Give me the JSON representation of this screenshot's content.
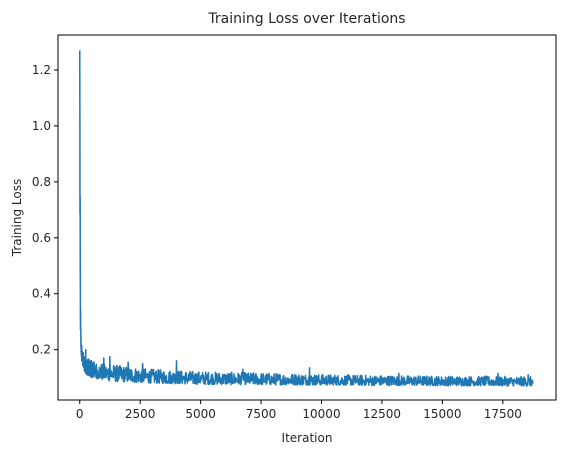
{
  "chart_data": {
    "type": "line",
    "title": "Training Loss over Iterations",
    "xlabel": "Iteration",
    "ylabel": "Training Loss",
    "xlim": [
      -900,
      19700
    ],
    "ylim": [
      0.02,
      1.325
    ],
    "x_ticks": [
      0,
      2500,
      5000,
      7500,
      10000,
      12500,
      15000,
      17500
    ],
    "x_tick_labels": [
      "0",
      "2500",
      "5000",
      "7500",
      "10000",
      "12500",
      "15000",
      "17500"
    ],
    "y_ticks": [
      0.2,
      0.4,
      0.6,
      0.8,
      1.0,
      1.2
    ],
    "y_tick_labels": [
      "0.2",
      "0.4",
      "0.6",
      "0.8",
      "1.0",
      "1.2"
    ],
    "grid": false,
    "legend": "none",
    "series": [
      {
        "color": "#1f77b4",
        "x": [
          0,
          10,
          20,
          35,
          50,
          75,
          100,
          150,
          200,
          300,
          400,
          500,
          750,
          1000,
          1250,
          1500,
          2000,
          2500,
          3000,
          3500,
          4000,
          4500,
          5000,
          6000,
          7000,
          8000,
          9000,
          10000,
          11000,
          12000,
          13000,
          14000,
          15000,
          16000,
          17000,
          18000,
          18750
        ],
        "y_upper": [
          1.27,
          1.05,
          0.62,
          0.32,
          0.27,
          0.23,
          0.2,
          0.19,
          0.18,
          0.17,
          0.165,
          0.16,
          0.155,
          0.15,
          0.15,
          0.145,
          0.14,
          0.135,
          0.13,
          0.128,
          0.126,
          0.124,
          0.122,
          0.12,
          0.118,
          0.116,
          0.114,
          0.112,
          0.11,
          0.109,
          0.108,
          0.107,
          0.106,
          0.105,
          0.105,
          0.104,
          0.104
        ],
        "y_lower": [
          1.27,
          0.5,
          0.3,
          0.22,
          0.19,
          0.16,
          0.15,
          0.13,
          0.12,
          0.11,
          0.105,
          0.1,
          0.095,
          0.09,
          0.088,
          0.086,
          0.084,
          0.082,
          0.08,
          0.079,
          0.078,
          0.077,
          0.076,
          0.075,
          0.075,
          0.074,
          0.074,
          0.073,
          0.073,
          0.072,
          0.072,
          0.072,
          0.071,
          0.071,
          0.071,
          0.07,
          0.07
        ],
        "spikes": [
          [
            250,
            0.2
          ],
          [
            1000,
            0.17
          ],
          [
            1250,
            0.175
          ],
          [
            2000,
            0.155
          ],
          [
            2600,
            0.15
          ],
          [
            4000,
            0.16
          ],
          [
            6750,
            0.13
          ],
          [
            9500,
            0.135
          ],
          [
            13200,
            0.115
          ],
          [
            17300,
            0.115
          ],
          [
            18550,
            0.11
          ]
        ]
      }
    ]
  }
}
